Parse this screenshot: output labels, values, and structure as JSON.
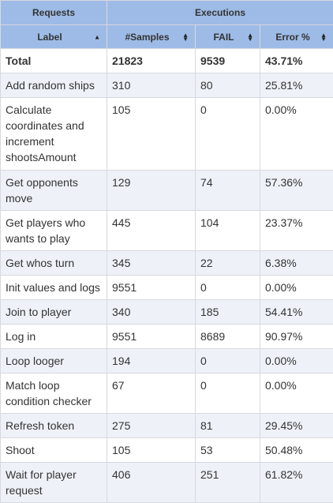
{
  "header": {
    "group_requests": "Requests",
    "group_executions": "Executions",
    "columns": [
      "Label",
      "#Samples",
      "FAIL",
      "Error %"
    ]
  },
  "total": {
    "label": "Total",
    "samples": "21823",
    "fail": "9539",
    "error": "43.71%"
  },
  "rows": [
    {
      "label": "Add random ships",
      "samples": "310",
      "fail": "80",
      "error": "25.81%"
    },
    {
      "label": "Calculate coordinates and increment shootsAmount",
      "samples": "105",
      "fail": "0",
      "error": "0.00%"
    },
    {
      "label": "Get opponents move",
      "samples": "129",
      "fail": "74",
      "error": "57.36%"
    },
    {
      "label": "Get players who wants to play",
      "samples": "445",
      "fail": "104",
      "error": "23.37%"
    },
    {
      "label": "Get whos turn",
      "samples": "345",
      "fail": "22",
      "error": "6.38%"
    },
    {
      "label": "Init values and logs",
      "samples": "9551",
      "fail": "0",
      "error": "0.00%"
    },
    {
      "label": "Join to player",
      "samples": "340",
      "fail": "185",
      "error": "54.41%"
    },
    {
      "label": "Log in",
      "samples": "9551",
      "fail": "8689",
      "error": "90.97%"
    },
    {
      "label": "Loop looger",
      "samples": "194",
      "fail": "0",
      "error": "0.00%"
    },
    {
      "label": "Match loop condition checker",
      "samples": "67",
      "fail": "0",
      "error": "0.00%"
    },
    {
      "label": "Refresh token",
      "samples": "275",
      "fail": "81",
      "error": "29.45%"
    },
    {
      "label": "Shoot",
      "samples": "105",
      "fail": "53",
      "error": "50.48%"
    },
    {
      "label": "Wait for player request",
      "samples": "406",
      "fail": "251",
      "error": "61.82%"
    }
  ]
}
